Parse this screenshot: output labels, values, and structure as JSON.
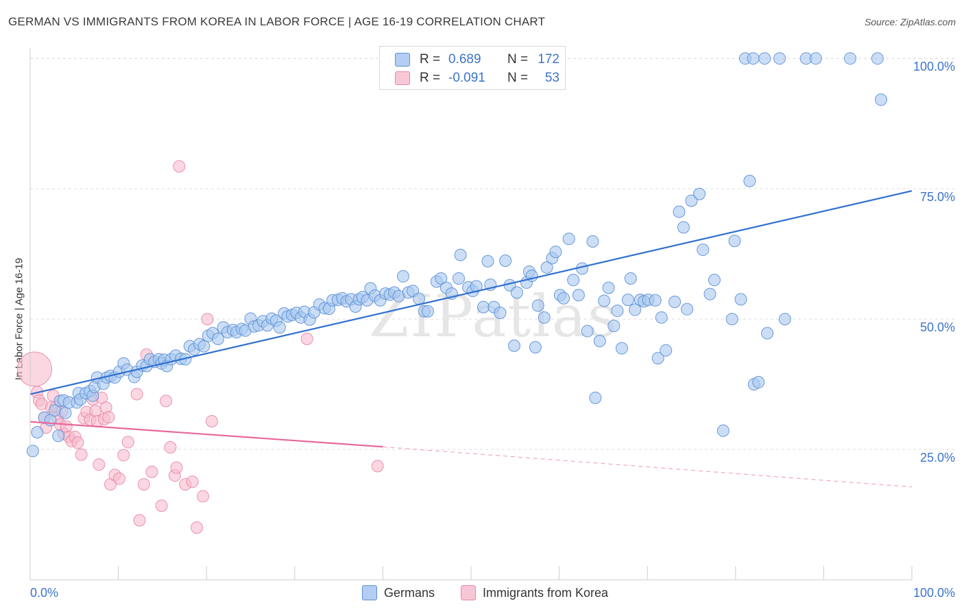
{
  "title": "GERMAN VS IMMIGRANTS FROM KOREA IN LABOR FORCE | AGE 16-19 CORRELATION CHART",
  "source": "Source: ZipAtlas.com",
  "watermark": "ZIPatlas",
  "legend_top": [
    {
      "r_label": "R =",
      "r_value": "0.689",
      "n_label": "N =",
      "n_value": "172"
    },
    {
      "r_label": "R =",
      "r_value": "-0.091",
      "n_label": "N =",
      "n_value": "53"
    }
  ],
  "legend_bottom": [
    {
      "label": "Germans"
    },
    {
      "label": "Immigrants from Korea"
    }
  ],
  "colors": {
    "blue_fill": "#a9c8f0",
    "blue_stroke": "#5b8fd6",
    "blue_line": "#2f6fd0",
    "pink_fill": "#f6bccd",
    "pink_stroke": "#e887a6",
    "pink_line": "#e8689a",
    "axis_text": "#3b74c9",
    "grid": "#dddddd"
  },
  "chart_data": {
    "type": "scatter",
    "title": "GERMAN VS IMMIGRANTS FROM KOREA IN LABOR FORCE | AGE 16-19 CORRELATION CHART",
    "xlabel": "",
    "ylabel": "In Labor Force | Age 16-19",
    "xlim": [
      0,
      100
    ],
    "ylim": [
      0,
      102
    ],
    "x_tick_labels": [
      "0.0%",
      "100.0%"
    ],
    "y_ticks": [
      25,
      50,
      75,
      100
    ],
    "y_tick_labels": [
      "25.0%",
      "50.0%",
      "75.0%",
      "100.0%"
    ],
    "series": [
      {
        "name": "Germans",
        "color": "#a9c8f0",
        "trend": {
          "x": [
            0,
            100
          ],
          "y": [
            35.6,
            74.6
          ]
        },
        "points": [
          [
            0.3,
            24.7
          ],
          [
            0.8,
            28.3
          ],
          [
            1.6,
            31.1
          ],
          [
            2.3,
            30.6
          ],
          [
            2.8,
            32.5
          ],
          [
            3.2,
            27.6
          ],
          [
            3.4,
            34.3
          ],
          [
            3.8,
            34.4
          ],
          [
            4.0,
            32.0
          ],
          [
            4.4,
            34.0
          ],
          [
            5.3,
            34.0
          ],
          [
            5.5,
            35.8
          ],
          [
            5.7,
            34.6
          ],
          [
            6.3,
            35.8
          ],
          [
            6.8,
            36.2
          ],
          [
            7.1,
            35.3
          ],
          [
            7.3,
            37.0
          ],
          [
            7.6,
            38.8
          ],
          [
            8.3,
            37.6
          ],
          [
            8.7,
            38.8
          ],
          [
            9.1,
            39.1
          ],
          [
            9.6,
            38.8
          ],
          [
            10.1,
            39.9
          ],
          [
            10.6,
            41.5
          ],
          [
            11.0,
            40.3
          ],
          [
            11.8,
            38.9
          ],
          [
            12.1,
            39.9
          ],
          [
            12.7,
            41.1
          ],
          [
            13.2,
            41.0
          ],
          [
            13.6,
            42.3
          ],
          [
            14.1,
            41.8
          ],
          [
            14.6,
            42.3
          ],
          [
            14.9,
            41.5
          ],
          [
            15.2,
            42.2
          ],
          [
            15.5,
            41.0
          ],
          [
            16.0,
            42.3
          ],
          [
            16.5,
            43.0
          ],
          [
            17.1,
            42.4
          ],
          [
            17.6,
            42.3
          ],
          [
            18.1,
            44.8
          ],
          [
            18.6,
            44.2
          ],
          [
            19.2,
            45.2
          ],
          [
            19.7,
            44.8
          ],
          [
            20.2,
            46.8
          ],
          [
            20.7,
            47.3
          ],
          [
            21.3,
            46.2
          ],
          [
            21.9,
            48.4
          ],
          [
            22.4,
            47.5
          ],
          [
            23.0,
            47.9
          ],
          [
            23.4,
            47.5
          ],
          [
            24.0,
            48.1
          ],
          [
            24.4,
            47.8
          ],
          [
            25.0,
            50.1
          ],
          [
            25.4,
            48.6
          ],
          [
            25.9,
            48.8
          ],
          [
            26.4,
            49.6
          ],
          [
            26.9,
            48.8
          ],
          [
            27.4,
            50.1
          ],
          [
            27.9,
            49.7
          ],
          [
            28.3,
            48.4
          ],
          [
            28.8,
            51.1
          ],
          [
            29.2,
            50.5
          ],
          [
            29.7,
            50.8
          ],
          [
            30.2,
            51.2
          ],
          [
            30.7,
            50.3
          ],
          [
            31.1,
            51.4
          ],
          [
            31.7,
            49.9
          ],
          [
            32.2,
            51.3
          ],
          [
            32.8,
            52.8
          ],
          [
            33.4,
            52.1
          ],
          [
            33.9,
            52.0
          ],
          [
            34.3,
            53.6
          ],
          [
            34.9,
            53.7
          ],
          [
            35.4,
            54.0
          ],
          [
            35.9,
            53.4
          ],
          [
            36.4,
            53.8
          ],
          [
            36.9,
            52.4
          ],
          [
            37.3,
            53.8
          ],
          [
            37.7,
            54.2
          ],
          [
            38.2,
            53.6
          ],
          [
            38.6,
            55.9
          ],
          [
            39.1,
            54.5
          ],
          [
            39.7,
            53.6
          ],
          [
            40.3,
            54.9
          ],
          [
            40.8,
            54.7
          ],
          [
            41.3,
            55.1
          ],
          [
            41.8,
            54.4
          ],
          [
            42.3,
            58.2
          ],
          [
            42.9,
            55.1
          ],
          [
            43.4,
            55.4
          ],
          [
            44.1,
            53.9
          ],
          [
            44.7,
            51.5
          ],
          [
            45.1,
            51.5
          ],
          [
            46.1,
            57.2
          ],
          [
            46.6,
            57.8
          ],
          [
            47.2,
            56.0
          ],
          [
            47.8,
            54.9
          ],
          [
            48.6,
            57.8
          ],
          [
            48.8,
            62.3
          ],
          [
            49.7,
            56.1
          ],
          [
            50.2,
            55.4
          ],
          [
            50.6,
            56.3
          ],
          [
            51.4,
            52.3
          ],
          [
            51.9,
            61.1
          ],
          [
            52.2,
            56.6
          ],
          [
            52.6,
            52.3
          ],
          [
            53.3,
            51.2
          ],
          [
            53.9,
            61.2
          ],
          [
            54.4,
            56.5
          ],
          [
            54.9,
            44.9
          ],
          [
            55.2,
            55.1
          ],
          [
            56.3,
            57.0
          ],
          [
            56.6,
            59.1
          ],
          [
            56.9,
            58.3
          ],
          [
            57.3,
            44.6
          ],
          [
            57.6,
            52.6
          ],
          [
            58.3,
            50.3
          ],
          [
            58.6,
            59.9
          ],
          [
            59.2,
            61.7
          ],
          [
            59.6,
            62.9
          ],
          [
            60.1,
            54.6
          ],
          [
            60.5,
            54.0
          ],
          [
            61.1,
            65.4
          ],
          [
            61.6,
            57.5
          ],
          [
            62.2,
            54.6
          ],
          [
            62.6,
            59.7
          ],
          [
            63.2,
            47.7
          ],
          [
            63.8,
            64.9
          ],
          [
            64.1,
            34.9
          ],
          [
            64.6,
            45.8
          ],
          [
            65.1,
            53.5
          ],
          [
            65.6,
            56.0
          ],
          [
            66.2,
            48.7
          ],
          [
            66.6,
            51.6
          ],
          [
            67.1,
            44.4
          ],
          [
            67.8,
            53.7
          ],
          [
            68.1,
            57.8
          ],
          [
            68.6,
            51.8
          ],
          [
            69.2,
            53.7
          ],
          [
            69.6,
            53.4
          ],
          [
            70.1,
            53.7
          ],
          [
            70.9,
            53.6
          ],
          [
            71.2,
            42.5
          ],
          [
            71.6,
            50.3
          ],
          [
            72.1,
            44.0
          ],
          [
            73.1,
            53.3
          ],
          [
            73.6,
            70.6
          ],
          [
            74.1,
            67.6
          ],
          [
            74.5,
            51.9
          ],
          [
            75.0,
            72.7
          ],
          [
            75.9,
            74.0
          ],
          [
            76.3,
            63.3
          ],
          [
            77.1,
            54.8
          ],
          [
            77.6,
            57.5
          ],
          [
            78.6,
            28.6
          ],
          [
            79.6,
            50.0
          ],
          [
            79.9,
            65.0
          ],
          [
            80.6,
            53.8
          ],
          [
            81.6,
            76.5
          ],
          [
            82.1,
            37.5
          ],
          [
            82.6,
            37.9
          ],
          [
            83.6,
            47.3
          ],
          [
            85.6,
            50.0
          ],
          [
            96.5,
            92.1
          ],
          [
            81.1,
            100.0
          ],
          [
            82.0,
            100.0
          ],
          [
            83.3,
            100.0
          ],
          [
            85.0,
            100.0
          ],
          [
            88.0,
            100.0
          ],
          [
            89.1,
            100.0
          ],
          [
            93.0,
            100.0
          ],
          [
            96.1,
            100.0
          ]
        ]
      },
      {
        "name": "Immigrants from Korea",
        "color": "#f6bccd",
        "trend": {
          "x": [
            0,
            40
          ],
          "y": [
            30.3,
            25.5
          ],
          "dashed_x": [
            40,
            100
          ],
          "dashed_y": [
            25.5,
            17.8
          ]
        },
        "points": [
          [
            0.5,
            40.4
          ],
          [
            0.8,
            36.0
          ],
          [
            1.0,
            34.4
          ],
          [
            1.3,
            33.7
          ],
          [
            1.6,
            31.1
          ],
          [
            1.8,
            29.2
          ],
          [
            2.4,
            33.1
          ],
          [
            2.6,
            35.3
          ],
          [
            2.9,
            33.1
          ],
          [
            3.1,
            31.1
          ],
          [
            3.4,
            29.8
          ],
          [
            3.6,
            32.3
          ],
          [
            3.8,
            28.0
          ],
          [
            4.1,
            29.4
          ],
          [
            4.4,
            27.4
          ],
          [
            4.7,
            26.6
          ],
          [
            5.1,
            27.4
          ],
          [
            5.4,
            26.3
          ],
          [
            5.8,
            24.0
          ],
          [
            6.1,
            31.0
          ],
          [
            6.4,
            32.2
          ],
          [
            6.8,
            30.7
          ],
          [
            7.1,
            34.6
          ],
          [
            7.4,
            32.4
          ],
          [
            7.6,
            30.4
          ],
          [
            7.8,
            22.1
          ],
          [
            8.1,
            34.9
          ],
          [
            8.4,
            30.8
          ],
          [
            8.6,
            33.0
          ],
          [
            8.9,
            31.2
          ],
          [
            9.1,
            18.3
          ],
          [
            9.6,
            20.1
          ],
          [
            10.1,
            19.4
          ],
          [
            10.6,
            23.9
          ],
          [
            11.1,
            26.4
          ],
          [
            12.1,
            35.6
          ],
          [
            12.9,
            18.3
          ],
          [
            12.4,
            11.4
          ],
          [
            13.2,
            43.2
          ],
          [
            13.8,
            20.7
          ],
          [
            14.9,
            14.2
          ],
          [
            15.4,
            34.3
          ],
          [
            15.9,
            25.4
          ],
          [
            16.4,
            20.0
          ],
          [
            16.6,
            21.5
          ],
          [
            16.9,
            79.3
          ],
          [
            17.6,
            18.3
          ],
          [
            18.4,
            18.8
          ],
          [
            18.9,
            10.0
          ],
          [
            19.6,
            16.0
          ],
          [
            20.1,
            50.0
          ],
          [
            20.6,
            30.4
          ],
          [
            31.4,
            46.2
          ],
          [
            39.4,
            21.8
          ]
        ]
      }
    ]
  }
}
